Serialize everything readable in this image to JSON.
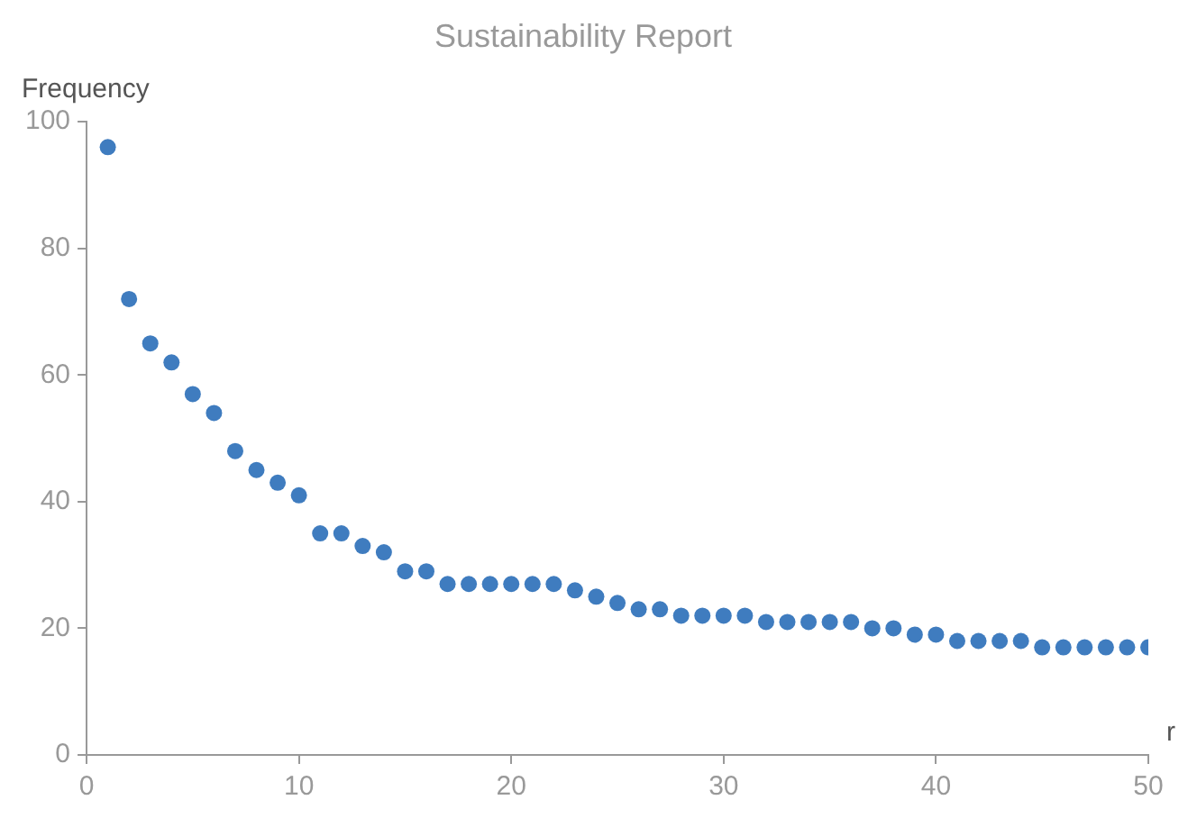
{
  "chart_data": {
    "type": "scatter",
    "title": "Sustainability Report",
    "xlabel": "r",
    "ylabel": "Frequency",
    "x": [
      1,
      2,
      3,
      4,
      5,
      6,
      7,
      8,
      9,
      10,
      11,
      12,
      13,
      14,
      15,
      16,
      17,
      18,
      19,
      20,
      21,
      22,
      23,
      24,
      25,
      26,
      27,
      28,
      29,
      30,
      31,
      32,
      33,
      34,
      35,
      36,
      37,
      38,
      39,
      40,
      41,
      42,
      43,
      44,
      45,
      46,
      47,
      48,
      49,
      50
    ],
    "series": [
      {
        "color": "#3f7cbf",
        "values": [
          96,
          72,
          65,
          62,
          57,
          54,
          48,
          45,
          43,
          41,
          35,
          35,
          33,
          32,
          29,
          29,
          27,
          27,
          27,
          27,
          27,
          27,
          26,
          25,
          24,
          23,
          23,
          22,
          22,
          22,
          22,
          21,
          21,
          21,
          21,
          21,
          20,
          20,
          19,
          19,
          18,
          18,
          18,
          18,
          17,
          17,
          17,
          17,
          17,
          17
        ]
      }
    ],
    "xlim": [
      0,
      50
    ],
    "ylim": [
      0,
      100
    ],
    "xticks": [
      0,
      10,
      20,
      30,
      40,
      50
    ],
    "yticks": [
      0,
      20,
      40,
      60,
      80,
      100
    ],
    "grid": false,
    "legend": false,
    "marker": "circle"
  }
}
